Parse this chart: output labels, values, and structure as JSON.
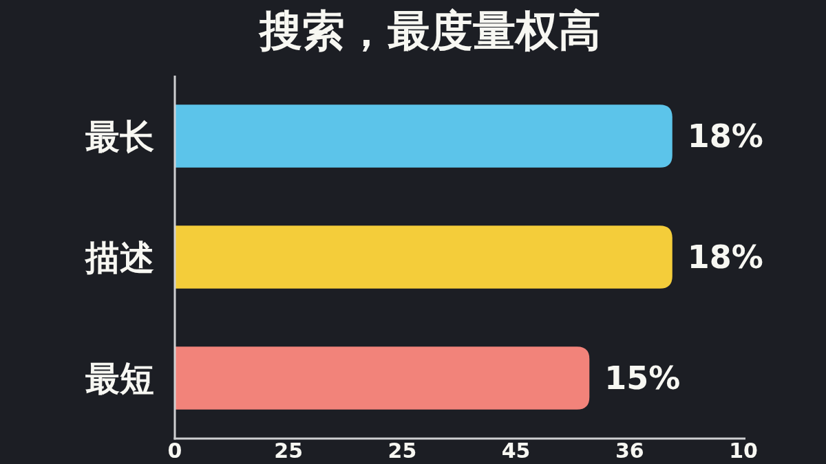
{
  "chart_data": {
    "type": "bar",
    "orientation": "horizontal",
    "title": "搜索，最度量权高",
    "categories": [
      "最长",
      "描述",
      "最短"
    ],
    "values": [
      18,
      18,
      15
    ],
    "value_labels": [
      "18%",
      "18%",
      "15%"
    ],
    "colors": [
      "#5cc4ea",
      "#f4cd3a",
      "#f2837a"
    ],
    "annotations": [
      "0",
      "25",
      "25",
      "45",
      "36",
      "10"
    ]
  }
}
